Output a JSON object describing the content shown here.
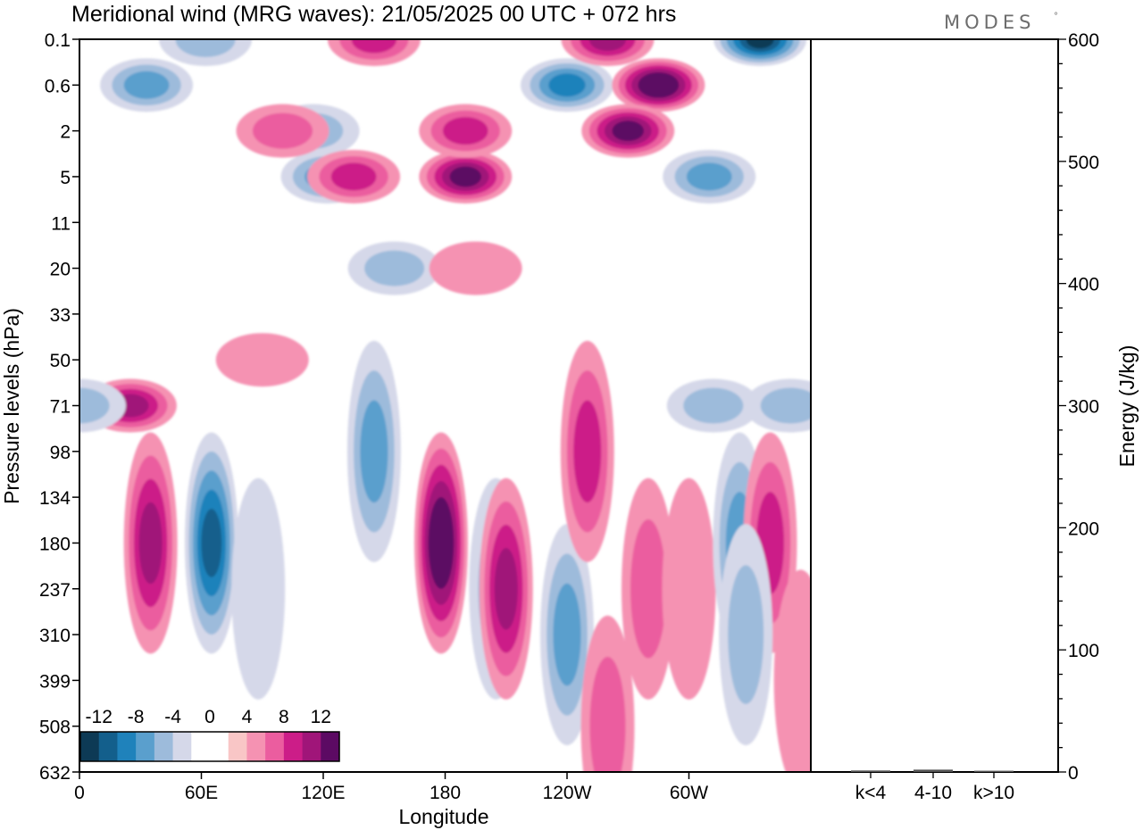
{
  "chart_data": [
    {
      "type": "heatmap",
      "title": "Meridional wind (MRG waves):  21/05/2025  00 UTC  + 072 hrs",
      "brand": "MODES",
      "brand_mark": "°",
      "xlabel": "Longitude",
      "ylabel": "Pressure levels (hPa)",
      "x_ticks": [
        "0",
        "60E",
        "120E",
        "180",
        "120W",
        "60W"
      ],
      "x_tick_values": [
        0,
        60,
        120,
        180,
        240,
        300
      ],
      "xlim": [
        0,
        360
      ],
      "y_ticks": [
        "0.1",
        "0.6",
        "2",
        "5",
        "11",
        "20",
        "33",
        "50",
        "71",
        "98",
        "134",
        "180",
        "237",
        "310",
        "399",
        "508",
        "632"
      ],
      "colorbar": {
        "labels": [
          "-12",
          "-8",
          "-4",
          "0",
          "4",
          "8",
          "12"
        ],
        "colors": [
          "#0d3a55",
          "#135f8c",
          "#1f82bb",
          "#5a9fcd",
          "#9dbbdb",
          "#d5d8e9",
          "#ffffff",
          "#ffffff",
          "#f9c6c6",
          "#f592b2",
          "#eb5d9f",
          "#cc1d88",
          "#a01579",
          "#5c0a63"
        ]
      },
      "features": [
        {
          "lon": 33,
          "level": "0.6",
          "v": -8
        },
        {
          "lon": 62,
          "level": "0.1",
          "v": -6
        },
        {
          "lon": 115,
          "level": "2",
          "v": -5
        },
        {
          "lon": 122,
          "level": "5",
          "v": -8
        },
        {
          "lon": 155,
          "level": "20",
          "v": -6
        },
        {
          "lon": 240,
          "level": "0.6",
          "v": -9
        },
        {
          "lon": 310,
          "level": "5",
          "v": -8
        },
        {
          "lon": 335,
          "level": "0.1",
          "v": -13
        },
        {
          "lon": 145,
          "level": "0.1",
          "v": 7
        },
        {
          "lon": 100,
          "level": "2",
          "v": 5
        },
        {
          "lon": 135,
          "level": "5",
          "v": 8
        },
        {
          "lon": 190,
          "level": "5",
          "v": 11
        },
        {
          "lon": 190,
          "level": "2",
          "v": 7
        },
        {
          "lon": 260,
          "level": "0.1",
          "v": 10
        },
        {
          "lon": 285,
          "level": "0.6",
          "v": 13
        },
        {
          "lon": 270,
          "level": "2",
          "v": 11
        },
        {
          "lon": 195,
          "level": "20",
          "v": 4
        },
        {
          "lon": 90,
          "level": "50",
          "v": 4
        },
        {
          "lon": 25,
          "level": "71",
          "v": 9
        },
        {
          "lon": 35,
          "level": "180",
          "v": 9
        },
        {
          "lon": 65,
          "level": "180",
          "v": -12
        },
        {
          "lon": 88,
          "level": "237",
          "v": -4
        },
        {
          "lon": 0,
          "level": "71",
          "v": -5
        },
        {
          "lon": 145,
          "level": "98",
          "v": -7
        },
        {
          "lon": 178,
          "level": "180",
          "v": 14
        },
        {
          "lon": 205,
          "level": "237",
          "v": -6
        },
        {
          "lon": 210,
          "level": "237",
          "v": 9
        },
        {
          "lon": 240,
          "level": "310",
          "v": -7
        },
        {
          "lon": 250,
          "level": "98",
          "v": 7
        },
        {
          "lon": 260,
          "level": "508",
          "v": 6
        },
        {
          "lon": 280,
          "level": "237",
          "v": 6
        },
        {
          "lon": 300,
          "level": "237",
          "v": 4
        },
        {
          "lon": 312,
          "level": "71",
          "v": -6
        },
        {
          "lon": 325,
          "level": "180",
          "v": -7
        },
        {
          "lon": 340,
          "level": "180",
          "v": 7
        },
        {
          "lon": 350,
          "level": "71",
          "v": -5
        },
        {
          "lon": 328,
          "level": "310",
          "v": -6
        },
        {
          "lon": 355,
          "level": "399",
          "v": 4
        }
      ]
    },
    {
      "type": "bar",
      "categories": [
        "k<4",
        "4-10",
        "k>10"
      ],
      "values": [
        0.5,
        1.2,
        0.3
      ],
      "ylabel": "Energy (J/kg)",
      "ylim": [
        0,
        600
      ],
      "y_ticks": [
        "0",
        "100",
        "200",
        "300",
        "400",
        "500",
        "600"
      ],
      "y_tick_values": [
        0,
        100,
        200,
        300,
        400,
        500,
        600
      ]
    }
  ]
}
